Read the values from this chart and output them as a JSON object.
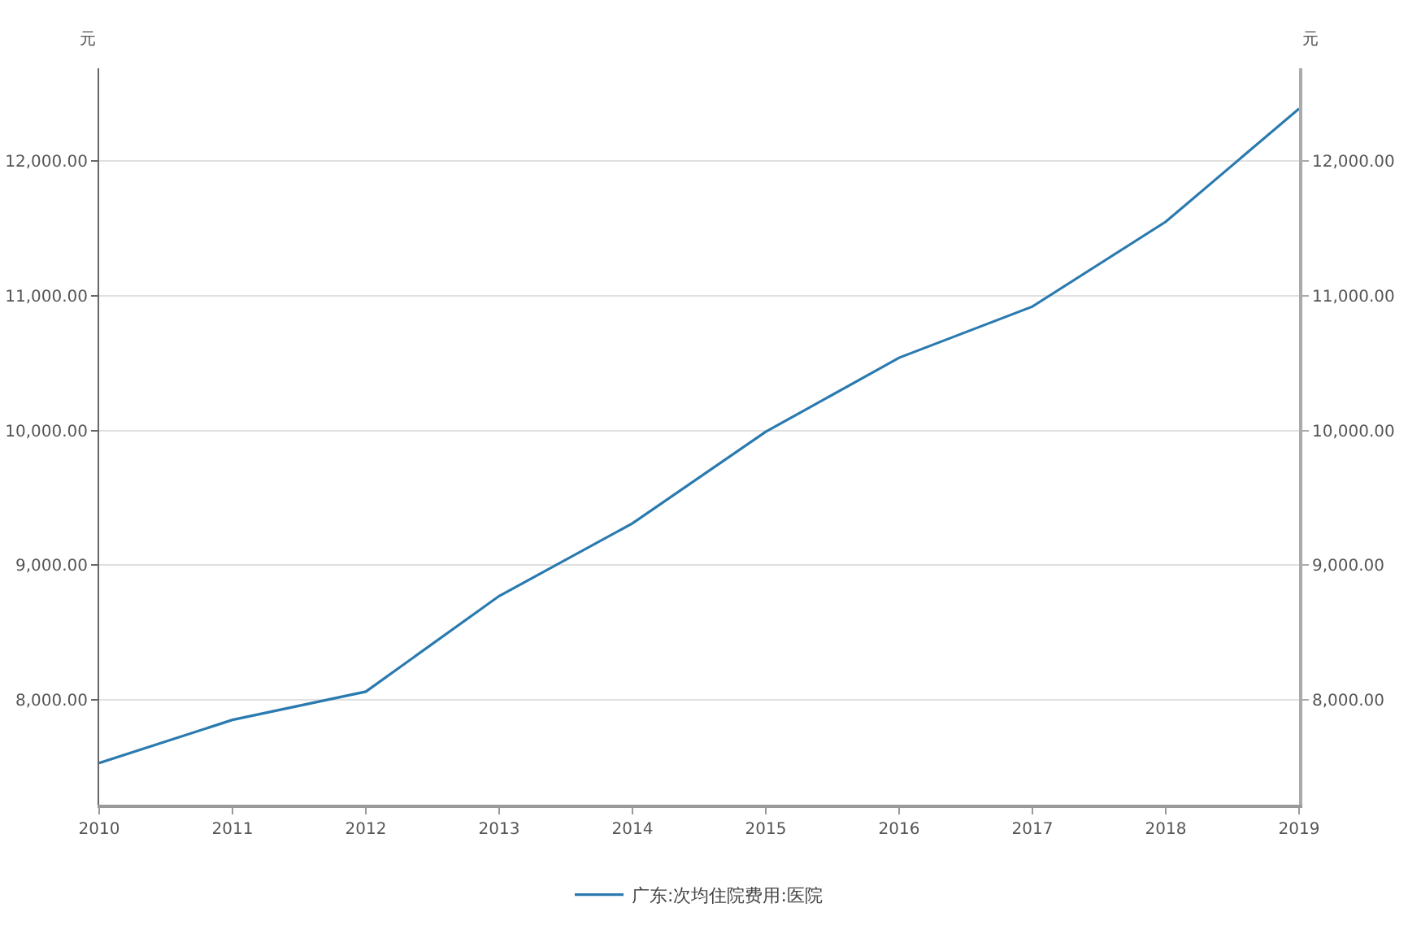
{
  "chart_data": {
    "type": "line",
    "x": [
      2010,
      2011,
      2012,
      2013,
      2014,
      2015,
      2016,
      2017,
      2018,
      2019
    ],
    "series": [
      {
        "name": "广东:次均住院费用:医院",
        "color": "#2a7ab0",
        "values": [
          7530,
          7850,
          8060,
          8770,
          9310,
          9990,
          10540,
          10920,
          11550,
          12390
        ]
      }
    ],
    "xlim": [
      2010,
      2019
    ],
    "xticks": [
      2010,
      2011,
      2012,
      2013,
      2014,
      2015,
      2016,
      2017,
      2018,
      2019
    ],
    "ylim": [
      7220,
      12690
    ],
    "yticks": [
      {
        "value": 8000,
        "label": "8,000.00"
      },
      {
        "value": 9000,
        "label": "9,000.00"
      },
      {
        "value": 10000,
        "label": "10,000.00"
      },
      {
        "value": 11000,
        "label": "11,000.00"
      },
      {
        "value": 12000,
        "label": "12,000.00"
      }
    ],
    "y2lim": [
      7220,
      12690
    ],
    "y2ticks": [
      {
        "value": 8000,
        "label": "8,000.00"
      },
      {
        "value": 9000,
        "label": "9,000.00"
      },
      {
        "value": 10000,
        "label": "10,000.00"
      },
      {
        "value": 11000,
        "label": "11,000.00"
      },
      {
        "value": 12000,
        "label": "12,000.00"
      }
    ],
    "ylabel": "元",
    "y2label": "元",
    "grid": "y",
    "legend": "bottom",
    "marker": "none",
    "line_style": "solid"
  }
}
